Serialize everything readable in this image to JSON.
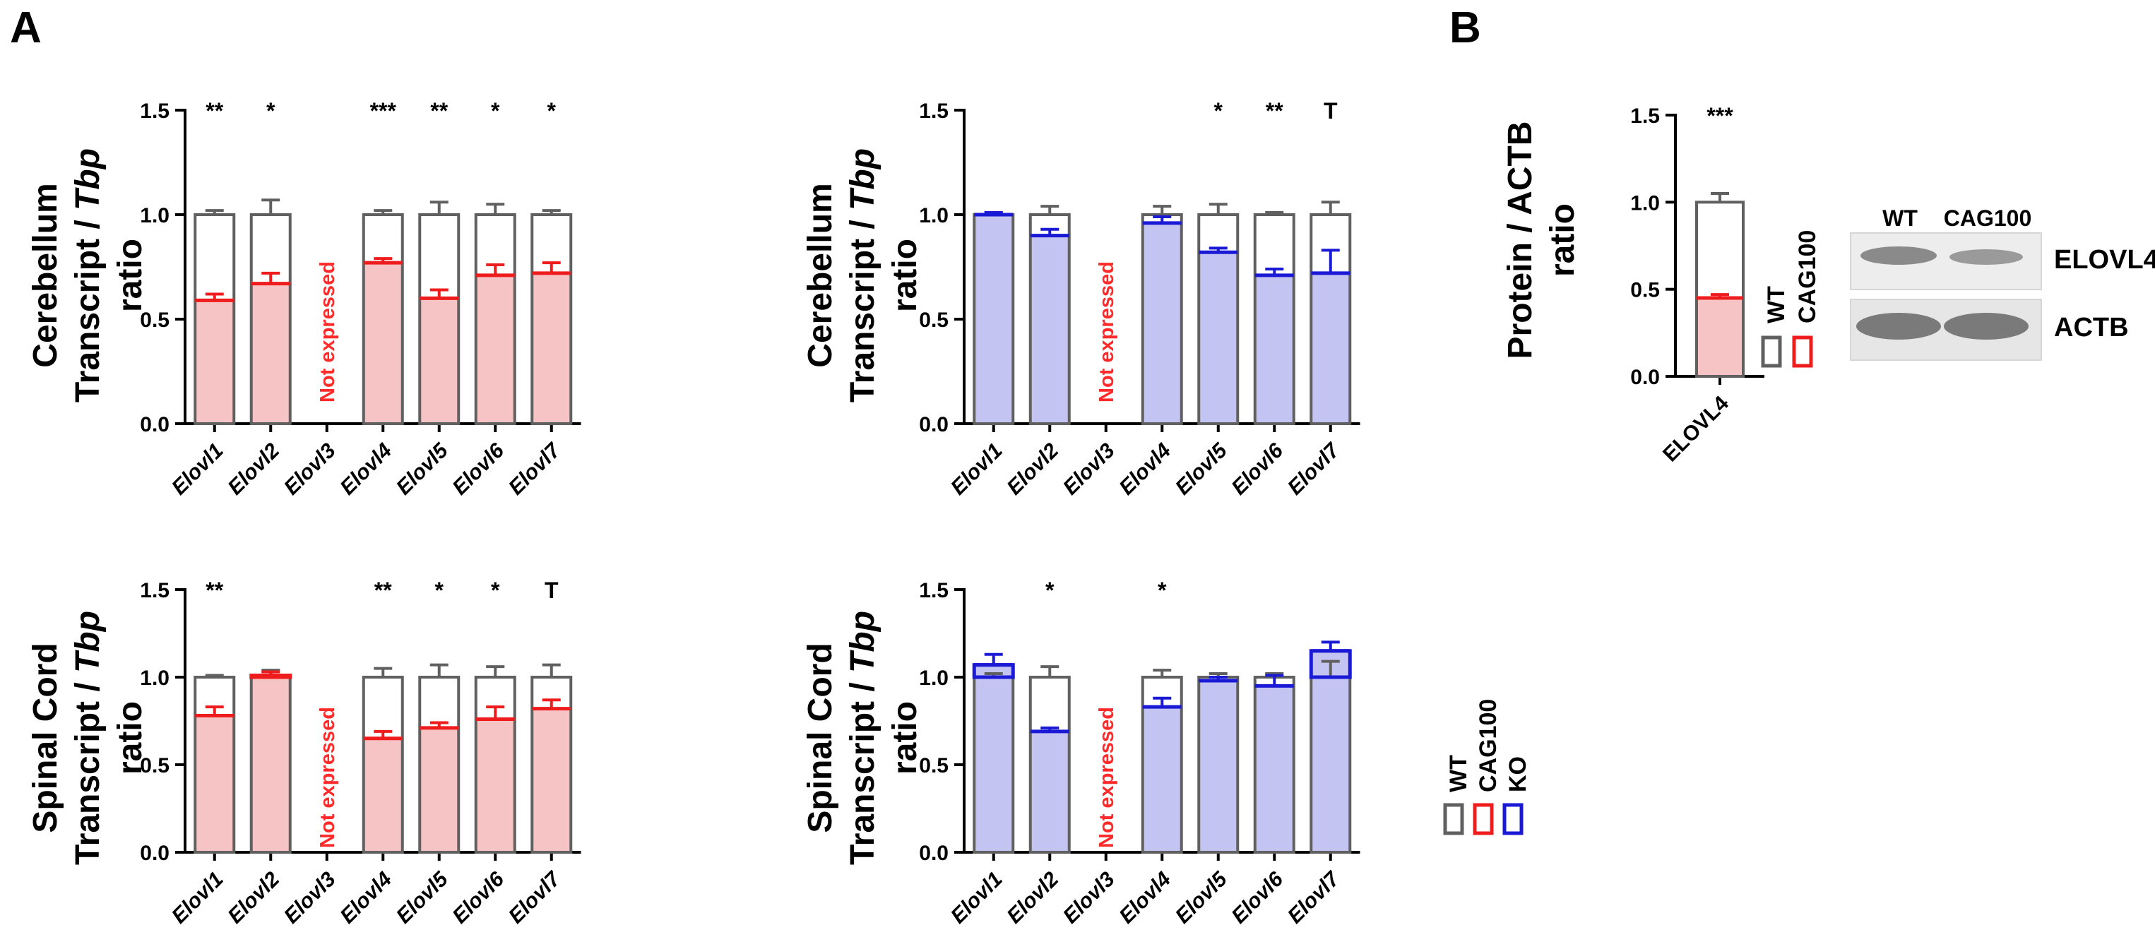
{
  "panels": {
    "a_label": "A",
    "b_label": "B"
  },
  "colors": {
    "wt_edge": "#606060",
    "cag100_edge": "#ee1c1c",
    "cag100_fill": "#f6c4c4",
    "ko_edge": "#1a1ad6",
    "ko_fill": "#c4c4f2",
    "not_expressed": "#ff2a2a"
  },
  "chart_data": [
    {
      "id": "cerebellum_cag100",
      "type": "bar",
      "ylabel_lines": [
        "Cerebellum",
        "Transcript / Tbp",
        "ratio"
      ],
      "ylim": [
        0,
        1.5
      ],
      "yticks": [
        "0.0",
        "0.5",
        "1.0",
        "1.5"
      ],
      "categories": [
        "Elovl1",
        "Elovl2",
        "Elovl3",
        "Elovl4",
        "Elovl5",
        "Elovl6",
        "Elovl7"
      ],
      "series": [
        {
          "name": "WT",
          "values": [
            1.0,
            1.0,
            null,
            1.0,
            1.0,
            1.0,
            1.0
          ],
          "errors": [
            0.02,
            0.07,
            null,
            0.02,
            0.06,
            0.05,
            0.02
          ]
        },
        {
          "name": "CAG100",
          "values": [
            0.59,
            0.67,
            null,
            0.77,
            0.6,
            0.71,
            0.72
          ],
          "errors": [
            0.03,
            0.05,
            null,
            0.02,
            0.04,
            0.05,
            0.05
          ]
        }
      ],
      "significance": [
        "**",
        "*",
        "",
        "***",
        "**",
        "*",
        "*"
      ],
      "not_expressed": {
        "index": 2,
        "text": "Not expressed"
      }
    },
    {
      "id": "cerebellum_ko",
      "type": "bar",
      "ylabel_lines": [
        "Cerebellum",
        "Transcript / Tbp",
        "ratio"
      ],
      "ylim": [
        0,
        1.5
      ],
      "yticks": [
        "0.0",
        "0.5",
        "1.0",
        "1.5"
      ],
      "categories": [
        "Elovl1",
        "Elovl2",
        "Elovl3",
        "Elovl4",
        "Elovl5",
        "Elovl6",
        "Elovl7"
      ],
      "series": [
        {
          "name": "WT",
          "values": [
            1.0,
            1.0,
            null,
            1.0,
            1.0,
            1.0,
            1.0
          ],
          "errors": [
            0.01,
            0.04,
            null,
            0.04,
            0.05,
            0.01,
            0.06
          ]
        },
        {
          "name": "KO",
          "values": [
            1.0,
            0.9,
            null,
            0.96,
            0.82,
            0.71,
            0.72
          ],
          "errors": [
            0.01,
            0.03,
            null,
            0.03,
            0.02,
            0.03,
            0.11
          ]
        }
      ],
      "significance": [
        "",
        "",
        "",
        "",
        "*",
        "**",
        "T"
      ],
      "not_expressed": {
        "index": 2,
        "text": "Not expressed"
      }
    },
    {
      "id": "spinal_cag100",
      "type": "bar",
      "ylabel_lines": [
        "Spinal Cord",
        "Transcript / Tbp",
        "ratio"
      ],
      "ylim": [
        0,
        1.5
      ],
      "yticks": [
        "0.0",
        "0.5",
        "1.0",
        "1.5"
      ],
      "categories": [
        "Elovl1",
        "Elovl2",
        "Elovl3",
        "Elovl4",
        "Elovl5",
        "Elovl6",
        "Elovl7"
      ],
      "series": [
        {
          "name": "WT",
          "values": [
            1.0,
            1.0,
            null,
            1.0,
            1.0,
            1.0,
            1.0
          ],
          "errors": [
            0.01,
            0.04,
            null,
            0.05,
            0.07,
            0.06,
            0.07
          ]
        },
        {
          "name": "CAG100",
          "values": [
            0.78,
            1.01,
            null,
            0.65,
            0.71,
            0.76,
            0.82
          ],
          "errors": [
            0.05,
            0.02,
            null,
            0.04,
            0.03,
            0.07,
            0.05
          ]
        }
      ],
      "significance": [
        "**",
        "",
        "",
        "**",
        "*",
        "*",
        "T"
      ],
      "not_expressed": {
        "index": 2,
        "text": "Not expressed"
      }
    },
    {
      "id": "spinal_ko",
      "type": "bar",
      "ylabel_lines": [
        "Spinal Cord",
        "Transcript / Tbp",
        "ratio"
      ],
      "ylim": [
        0,
        1.5
      ],
      "yticks": [
        "0.0",
        "0.5",
        "1.0",
        "1.5"
      ],
      "categories": [
        "Elovl1",
        "Elovl2",
        "Elovl3",
        "Elovl4",
        "Elovl5",
        "Elovl6",
        "Elovl7"
      ],
      "series": [
        {
          "name": "WT",
          "values": [
            1.0,
            1.0,
            null,
            1.0,
            1.0,
            1.0,
            1.0
          ],
          "errors": [
            0.02,
            0.06,
            null,
            0.04,
            0.02,
            0.02,
            0.09
          ]
        },
        {
          "name": "KO",
          "values": [
            1.07,
            0.69,
            null,
            0.83,
            0.98,
            0.95,
            1.15
          ],
          "errors": [
            0.06,
            0.02,
            null,
            0.05,
            0.02,
            0.06,
            0.05
          ]
        }
      ],
      "significance": [
        "",
        "*",
        "",
        "*",
        "",
        "",
        ""
      ],
      "not_expressed": {
        "index": 2,
        "text": "Not expressed"
      }
    },
    {
      "id": "protein_elovl4",
      "type": "bar",
      "ylabel_lines": [
        "Protein / ACTB",
        "ratio"
      ],
      "ylim": [
        0,
        1.5
      ],
      "yticks": [
        "0.0",
        "0.5",
        "1.0",
        "1.5"
      ],
      "categories": [
        "ELOVL4"
      ],
      "series": [
        {
          "name": "WT",
          "values": [
            1.0
          ],
          "errors": [
            0.05
          ]
        },
        {
          "name": "CAG100",
          "values": [
            0.45
          ],
          "errors": [
            0.02
          ]
        }
      ],
      "significance": [
        "***"
      ]
    }
  ],
  "legend_b": {
    "items": [
      "WT",
      "CAG100"
    ]
  },
  "legend_a": {
    "items": [
      "WT",
      "CAG100",
      "KO"
    ]
  },
  "blot": {
    "lanes": [
      "WT",
      "CAG100"
    ],
    "rows": [
      "ELOVL4",
      "ACTB"
    ]
  }
}
